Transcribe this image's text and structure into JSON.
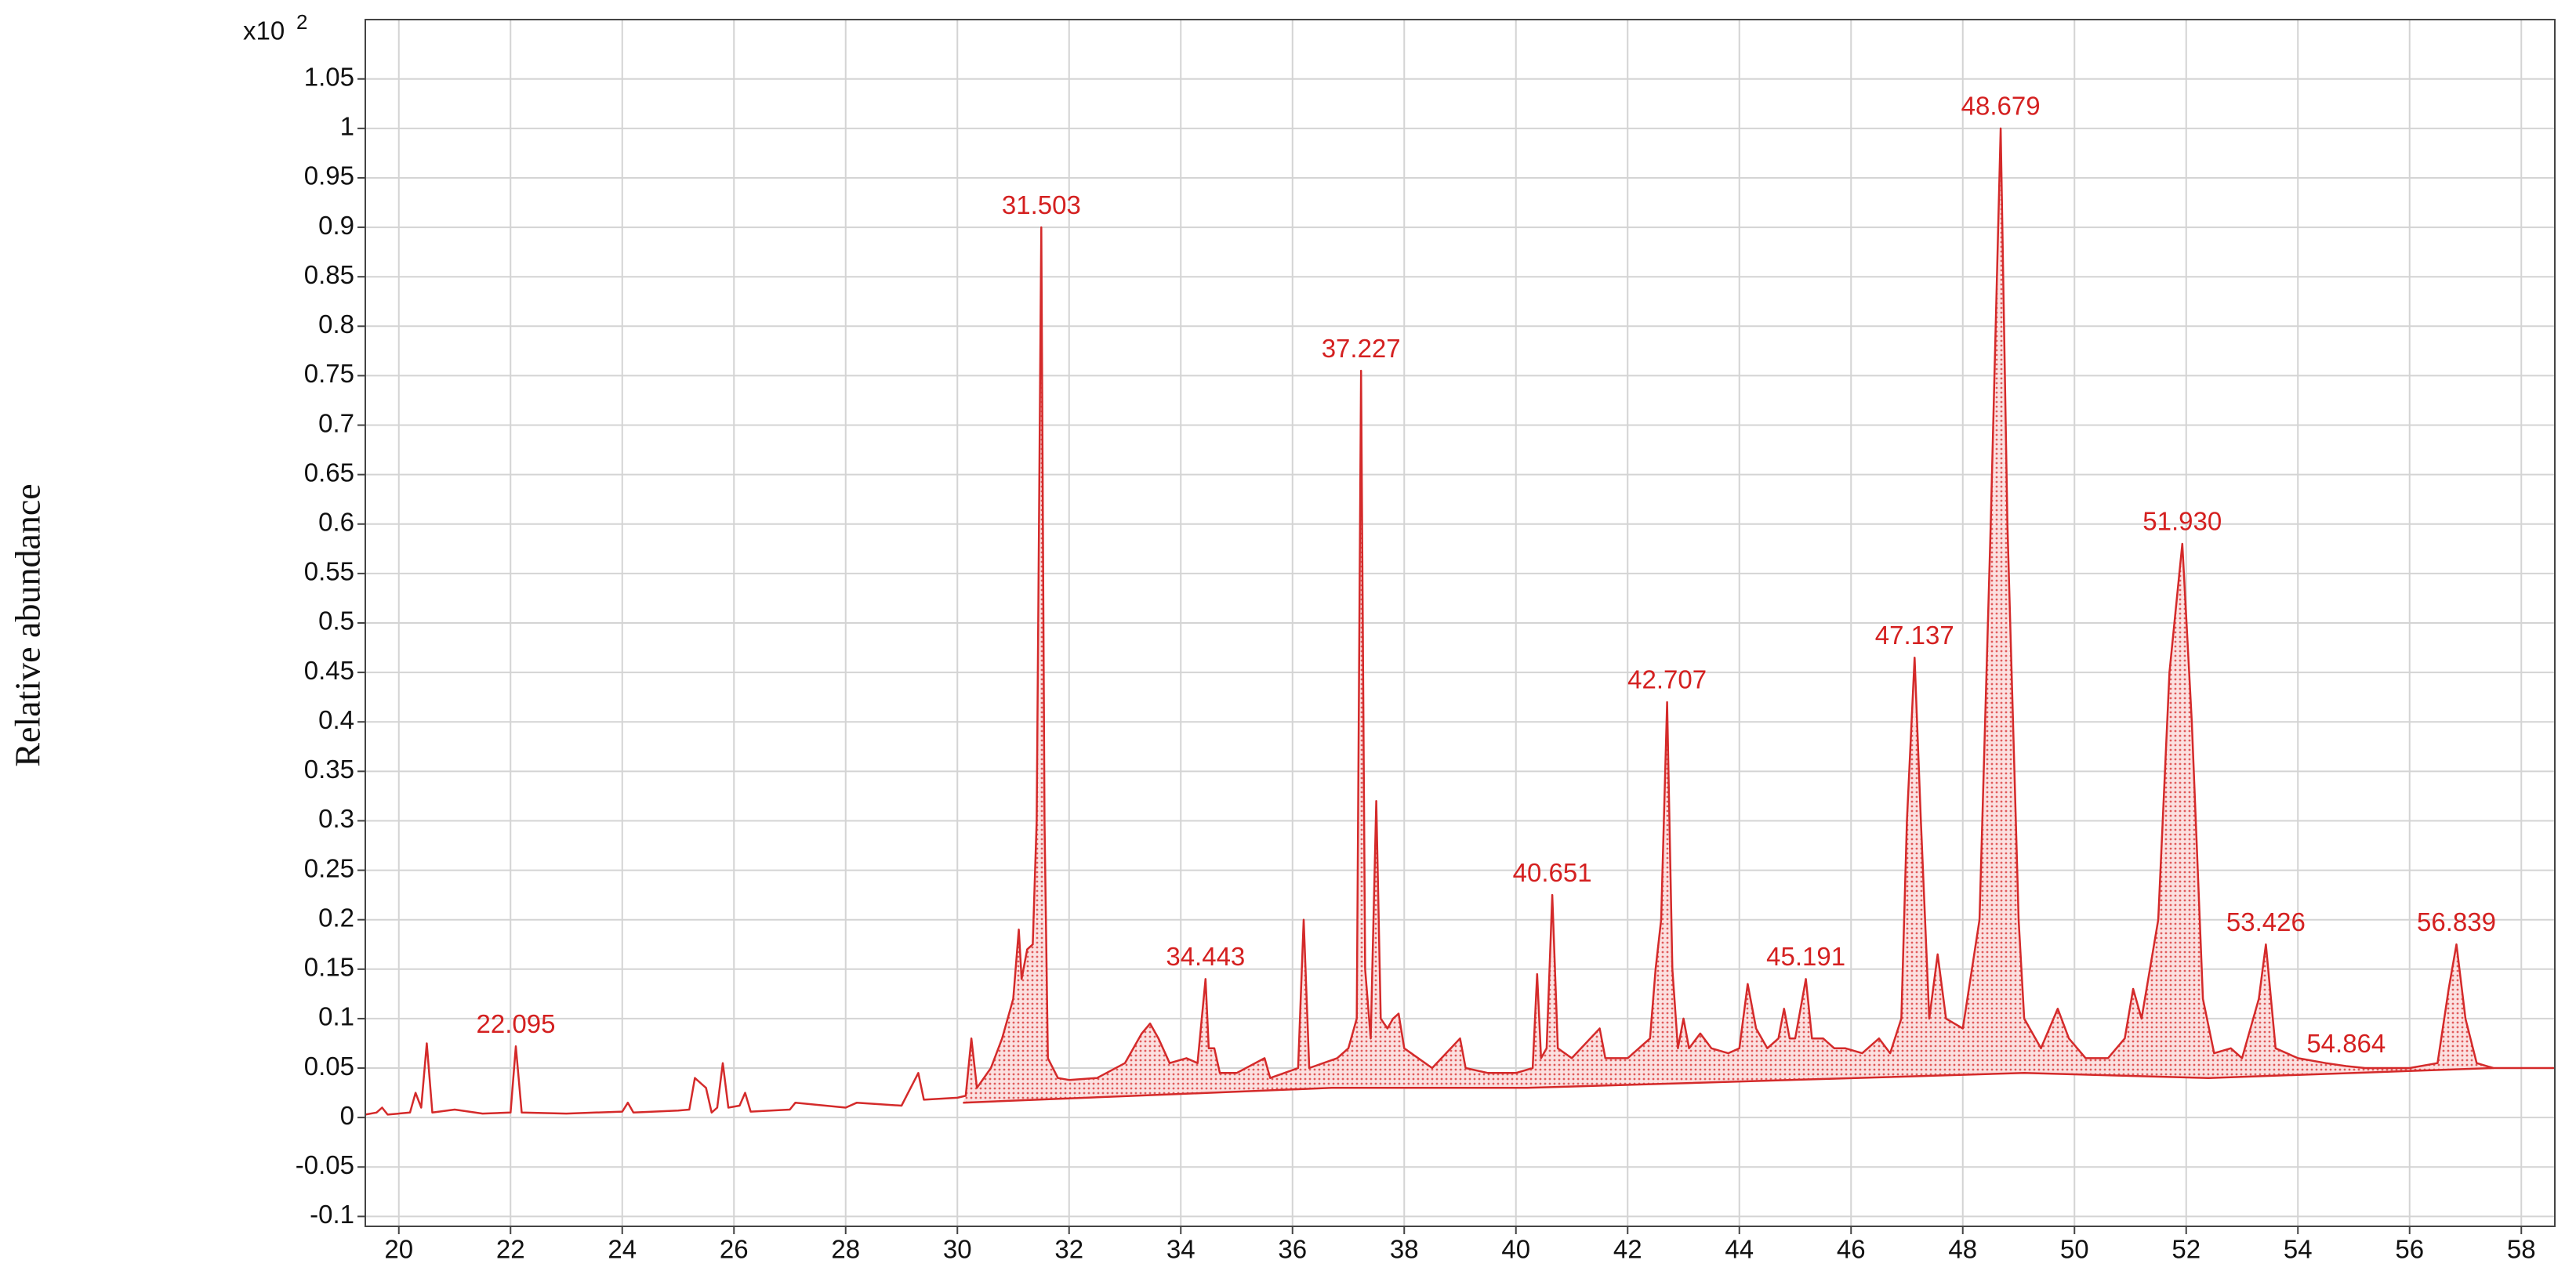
{
  "chart_data": {
    "type": "line",
    "y_label": "Relative abundance",
    "multiplier": "x10",
    "multiplier_exponent": "2",
    "xlim": [
      19.4,
      58.6
    ],
    "ylim": [
      -0.11,
      1.11
    ],
    "xticks": [
      20,
      22,
      24,
      26,
      28,
      30,
      32,
      34,
      36,
      38,
      40,
      42,
      44,
      46,
      48,
      50,
      52,
      54,
      56,
      58
    ],
    "yticks": [
      -0.1,
      -0.05,
      0,
      0.05,
      0.1,
      0.15,
      0.2,
      0.25,
      0.3,
      0.35,
      0.4,
      0.45,
      0.5,
      0.55,
      0.6,
      0.65,
      0.7,
      0.75,
      0.8,
      0.85,
      0.9,
      0.95,
      1,
      1.05
    ],
    "grid": true,
    "series": [
      {
        "color": "#d42a2a",
        "fill_color": "#f3a9a9",
        "x": [
          19.4,
          19.6,
          19.7,
          19.8,
          20.2,
          20.3,
          20.4,
          20.5,
          20.6,
          21.0,
          21.5,
          22.0,
          22.095,
          22.2,
          23,
          24,
          24.1,
          24.2,
          25,
          25.2,
          25.3,
          25.4,
          25.5,
          25.6,
          25.7,
          25.8,
          25.9,
          26.1,
          26.2,
          26.3,
          27,
          27.1,
          28,
          28.2,
          29,
          29.3,
          29.4,
          30,
          30.15,
          30.25,
          30.35,
          30.6,
          30.8,
          31.0,
          31.1,
          31.15,
          31.25,
          31.35,
          31.42,
          31.503,
          31.56,
          31.62,
          31.8,
          32,
          32.5,
          33,
          33.3,
          33.45,
          33.6,
          33.8,
          34.1,
          34.3,
          34.443,
          34.5,
          34.6,
          34.7,
          35,
          35.5,
          35.6,
          36.1,
          36.2,
          36.3,
          36.8,
          37.0,
          37.15,
          37.227,
          37.3,
          37.4,
          37.5,
          37.58,
          37.7,
          37.8,
          37.9,
          38.0,
          38.5,
          39,
          39.1,
          39.5,
          40,
          40.3,
          40.38,
          40.45,
          40.55,
          40.651,
          40.75,
          41,
          41.5,
          41.6,
          42,
          42.4,
          42.5,
          42.6,
          42.707,
          42.8,
          42.9,
          43,
          43.1,
          43.3,
          43.5,
          43.8,
          44.0,
          44.15,
          44.3,
          44.5,
          44.7,
          44.8,
          44.9,
          45.0,
          45.191,
          45.3,
          45.5,
          45.7,
          45.9,
          46.2,
          46.5,
          46.7,
          46.9,
          47.0,
          47.137,
          47.25,
          47.4,
          47.55,
          47.7,
          48,
          48.3,
          48.5,
          48.679,
          48.8,
          49.0,
          49.1,
          49.4,
          49.7,
          49.9,
          50.2,
          50.6,
          50.9,
          51.05,
          51.2,
          51.5,
          51.7,
          51.93,
          52.1,
          52.3,
          52.5,
          52.8,
          53.0,
          53.3,
          53.426,
          53.6,
          54,
          54.5,
          54.864,
          55.2,
          55.5,
          56,
          56.5,
          56.7,
          56.839,
          57,
          57.2,
          57.5,
          58.6
        ],
        "values": [
          0.003,
          0.005,
          0.01,
          0.003,
          0.005,
          0.025,
          0.01,
          0.075,
          0.005,
          0.008,
          0.004,
          0.005,
          0.072,
          0.005,
          0.004,
          0.006,
          0.015,
          0.005,
          0.007,
          0.008,
          0.04,
          0.035,
          0.03,
          0.005,
          0.01,
          0.055,
          0.01,
          0.012,
          0.025,
          0.006,
          0.008,
          0.015,
          0.01,
          0.015,
          0.012,
          0.045,
          0.018,
          0.02,
          0.022,
          0.08,
          0.03,
          0.05,
          0.08,
          0.12,
          0.19,
          0.14,
          0.17,
          0.175,
          0.3,
          0.9,
          0.3,
          0.06,
          0.04,
          0.038,
          0.04,
          0.055,
          0.085,
          0.095,
          0.08,
          0.055,
          0.06,
          0.055,
          0.14,
          0.07,
          0.07,
          0.045,
          0.045,
          0.06,
          0.04,
          0.05,
          0.2,
          0.05,
          0.06,
          0.07,
          0.1,
          0.755,
          0.15,
          0.08,
          0.32,
          0.1,
          0.09,
          0.1,
          0.105,
          0.07,
          0.05,
          0.08,
          0.05,
          0.045,
          0.045,
          0.05,
          0.145,
          0.06,
          0.07,
          0.225,
          0.07,
          0.06,
          0.09,
          0.06,
          0.06,
          0.08,
          0.15,
          0.2,
          0.42,
          0.15,
          0.07,
          0.1,
          0.07,
          0.085,
          0.07,
          0.065,
          0.07,
          0.135,
          0.09,
          0.07,
          0.08,
          0.11,
          0.08,
          0.08,
          0.14,
          0.08,
          0.08,
          0.07,
          0.07,
          0.065,
          0.08,
          0.065,
          0.1,
          0.3,
          0.465,
          0.3,
          0.1,
          0.165,
          0.1,
          0.09,
          0.2,
          0.6,
          1.0,
          0.6,
          0.2,
          0.1,
          0.07,
          0.11,
          0.08,
          0.06,
          0.06,
          0.08,
          0.13,
          0.1,
          0.2,
          0.45,
          0.58,
          0.4,
          0.12,
          0.065,
          0.07,
          0.06,
          0.12,
          0.175,
          0.07,
          0.06,
          0.055,
          0.052,
          0.05,
          0.05,
          0.05,
          0.055,
          0.13,
          0.175,
          0.1,
          0.055,
          0.05,
          0.05
        ]
      }
    ],
    "baseline": {
      "x": [
        30.1,
        36.7,
        40.2,
        49.1,
        52.4,
        57.5
      ],
      "values": [
        0.015,
        0.03,
        0.03,
        0.045,
        0.04,
        0.05
      ]
    },
    "annotations": [
      {
        "text": "22.095",
        "x": 22.095
      },
      {
        "text": "31.503",
        "x": 31.503
      },
      {
        "text": "34.443",
        "x": 34.443
      },
      {
        "text": "37.227",
        "x": 37.227
      },
      {
        "text": "40.651",
        "x": 40.651
      },
      {
        "text": "42.707",
        "x": 42.707
      },
      {
        "text": "45.191",
        "x": 45.191
      },
      {
        "text": "47.137",
        "x": 47.137
      },
      {
        "text": "48.679",
        "x": 48.679
      },
      {
        "text": "51.930",
        "x": 51.93
      },
      {
        "text": "53.426",
        "x": 53.426
      },
      {
        "text": "54.864",
        "x": 54.864
      },
      {
        "text": "56.839",
        "x": 56.839
      }
    ]
  }
}
